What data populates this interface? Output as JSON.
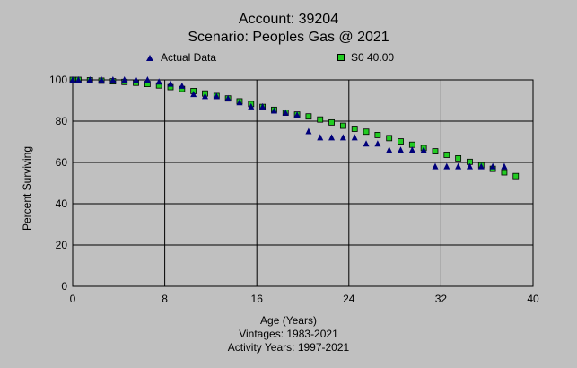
{
  "chart_data": {
    "type": "scatter",
    "title": "Account: 39204",
    "subtitle": "Scenario: Peoples Gas @ 2021",
    "xlabel": "Age (Years)",
    "ylabel": "Percent Surviving",
    "xlim": [
      0,
      40
    ],
    "ylim": [
      0,
      100
    ],
    "xticks": [
      "0",
      "8",
      "16",
      "24",
      "32",
      "40"
    ],
    "yticks": [
      "0",
      "20",
      "40",
      "60",
      "80",
      "100"
    ],
    "grid": true,
    "legend_position": "top",
    "footnotes": [
      "Vintages: 1983-2021",
      "Activity Years: 1997-2021"
    ],
    "series": [
      {
        "name": "Actual Data",
        "marker": "triangle",
        "color": "#00007a",
        "x": [
          0,
          0.5,
          1.5,
          2.5,
          3.5,
          4.5,
          5.5,
          6.5,
          7.5,
          8.5,
          9.5,
          10.5,
          11.5,
          12.5,
          13.5,
          14.5,
          15.5,
          16.5,
          17.5,
          18.5,
          19.5,
          20.5,
          21.5,
          22.5,
          23.5,
          24.5,
          25.5,
          26.5,
          27.5,
          28.5,
          29.5,
          30.5,
          31.5,
          32.5,
          33.5,
          34.5,
          35.5,
          36.5,
          37.5
        ],
        "y": [
          100,
          100,
          100,
          100,
          100,
          100,
          100,
          100,
          99,
          98,
          97,
          93,
          92,
          92,
          91,
          89,
          87,
          87,
          85,
          84,
          83,
          75,
          72,
          72,
          72,
          72,
          69,
          69,
          66,
          66,
          66,
          66,
          58,
          58,
          58,
          58,
          58,
          58,
          58
        ]
      },
      {
        "name": "S0 40.00",
        "marker": "square",
        "color": "#22cc22",
        "x": [
          0,
          0.5,
          1.5,
          2.5,
          3.5,
          4.5,
          5.5,
          6.5,
          7.5,
          8.5,
          9.5,
          10.5,
          11.5,
          12.5,
          13.5,
          14.5,
          15.5,
          16.5,
          17.5,
          18.5,
          19.5,
          20.5,
          21.5,
          22.5,
          23.5,
          24.5,
          25.5,
          26.5,
          27.5,
          28.5,
          29.5,
          30.5,
          31.5,
          32.5,
          33.5,
          34.5,
          35.5,
          36.5,
          37.5,
          38.5
        ],
        "y": [
          100,
          100,
          99.8,
          99.6,
          99.3,
          99,
          98.6,
          98,
          97.3,
          96.5,
          95.6,
          94.6,
          93.4,
          92.2,
          91,
          89.6,
          88.3,
          86.9,
          85.5,
          84.1,
          83.2,
          82.3,
          80.8,
          79.4,
          77.8,
          76.3,
          74.9,
          73.3,
          71.8,
          70.2,
          68.6,
          67,
          65.4,
          63.7,
          62,
          60.3,
          58.6,
          56.9,
          55.2,
          53.4
        ]
      }
    ]
  }
}
